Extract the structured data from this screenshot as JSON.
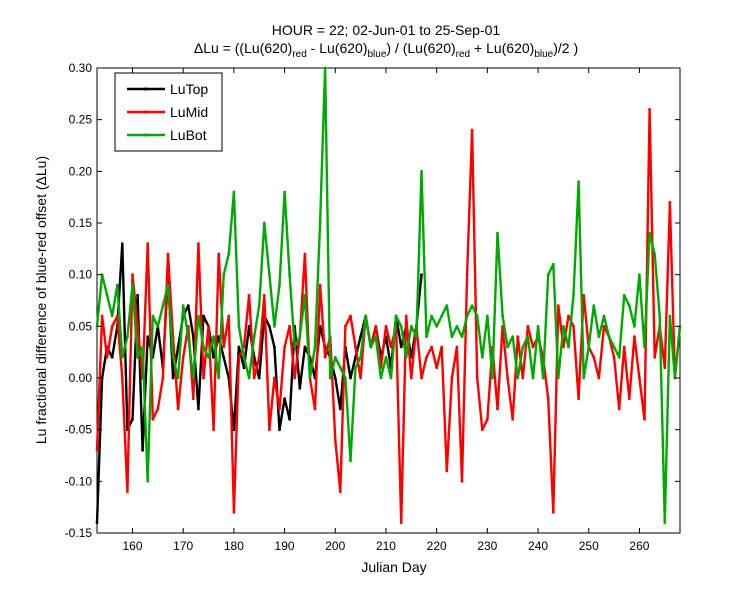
{
  "chart_data": {
    "type": "line",
    "title": {
      "line1": "HOUR = 22; 02-Jun-01 to 25-Sep-01",
      "line2": {
        "prefix": "ΔLu = ((Lu(620)",
        "s1": "red",
        "mid1": " - Lu(620)",
        "s2": "blue",
        "mid2": ") / (Lu(620)",
        "s3": "red",
        "mid3": " + Lu(620)",
        "s4": "blue",
        "suffix": ")/2  )"
      }
    },
    "xlabel": "Julian Day",
    "ylabel": "Lu fractional difference of blue-red offset (ΔLu)",
    "xlim": [
      153,
      268
    ],
    "ylim": [
      -0.15,
      0.3
    ],
    "xticks": [
      160,
      170,
      180,
      190,
      200,
      210,
      220,
      230,
      240,
      250,
      260
    ],
    "yticks": [
      -0.15,
      -0.1,
      -0.05,
      0.0,
      0.05,
      0.1,
      0.15,
      0.2,
      0.25,
      0.3
    ],
    "ytick_labels": [
      "-0.15",
      "-0.10",
      "-0.05",
      "0.00",
      "0.05",
      "0.10",
      "0.15",
      "0.20",
      "0.25",
      "0.30"
    ],
    "legend_position": "top-left",
    "series": [
      {
        "name": "LuTop",
        "color": "#000000",
        "x": [
          153,
          154,
          155,
          156,
          157,
          158,
          159,
          160,
          161,
          162,
          163,
          164,
          165,
          166,
          167,
          168,
          169,
          170,
          171,
          172,
          173,
          174,
          175,
          176,
          177,
          178,
          179,
          180,
          181,
          182,
          183,
          184,
          185,
          186,
          187,
          188,
          189,
          190,
          191,
          192,
          193,
          194,
          195,
          196,
          197,
          198,
          199,
          200,
          201,
          202,
          203,
          204,
          205,
          206,
          207,
          208,
          209,
          210,
          211,
          212,
          213,
          214,
          215,
          216,
          217
        ],
        "y": [
          -0.14,
          0.0,
          0.03,
          0.02,
          0.05,
          0.13,
          -0.05,
          -0.04,
          0.08,
          -0.07,
          0.04,
          0.02,
          0.05,
          0.01,
          0.1,
          0.0,
          0.03,
          0.06,
          0.07,
          0.04,
          -0.03,
          0.06,
          0.05,
          0.02,
          0.04,
          0.02,
          0.0,
          -0.05,
          0.03,
          0.01,
          0.05,
          0.02,
          0.0,
          0.06,
          0.05,
          0.03,
          -0.05,
          -0.02,
          -0.04,
          0.05,
          -0.01,
          0.03,
          0.02,
          0.0,
          0.05,
          0.03,
          0.02,
          0.0,
          -0.03,
          0.03,
          0.0,
          0.02,
          0.04,
          0.06,
          0.03,
          0.05,
          0.02,
          0.04,
          0.01,
          0.06,
          0.03,
          0.05,
          0.02,
          0.05,
          0.1
        ]
      },
      {
        "name": "LuMid",
        "color": "#ff0000",
        "x": [
          153,
          154,
          155,
          156,
          157,
          158,
          159,
          160,
          161,
          162,
          163,
          164,
          165,
          166,
          167,
          168,
          169,
          170,
          171,
          172,
          173,
          174,
          175,
          176,
          177,
          178,
          179,
          180,
          181,
          182,
          183,
          184,
          185,
          186,
          187,
          188,
          189,
          190,
          191,
          192,
          193,
          194,
          195,
          196,
          197,
          198,
          199,
          200,
          201,
          202,
          203,
          204,
          205,
          206,
          207,
          208,
          209,
          210,
          211,
          212,
          213,
          214,
          215,
          216,
          217,
          218,
          219,
          220,
          221,
          222,
          223,
          224,
          225,
          226,
          227,
          228,
          229,
          230,
          231,
          232,
          233,
          234,
          235,
          236,
          237,
          238,
          239,
          240,
          241,
          242,
          243,
          244,
          245,
          246,
          247,
          248,
          249,
          250,
          251,
          252,
          253,
          254,
          255,
          256,
          257,
          258,
          259,
          260,
          261,
          262,
          263,
          264,
          265,
          266,
          267,
          268
        ],
        "y": [
          -0.07,
          0.06,
          0.02,
          0.05,
          0.06,
          0.0,
          -0.11,
          0.1,
          0.05,
          0.0,
          0.13,
          -0.04,
          -0.03,
          0.0,
          0.12,
          0.04,
          -0.03,
          0.02,
          0.05,
          -0.02,
          0.13,
          0.0,
          0.05,
          -0.05,
          0.12,
          0.03,
          0.06,
          -0.13,
          0.02,
          0.03,
          0.08,
          0.0,
          0.02,
          0.08,
          -0.05,
          0.0,
          -0.03,
          0.03,
          0.05,
          0.0,
          0.04,
          0.12,
          0.0,
          -0.03,
          0.09,
          0.02,
          0.04,
          -0.06,
          -0.11,
          0.05,
          0.06,
          0.03,
          0.0,
          0.06,
          0.03,
          0.05,
          0.01,
          0.05,
          0.03,
          0.05,
          -0.14,
          0.06,
          0.0,
          0.05,
          0.0,
          0.02,
          0.03,
          0.01,
          0.03,
          -0.09,
          0.0,
          0.03,
          -0.1,
          0.1,
          0.24,
          0.0,
          -0.05,
          -0.04,
          0.03,
          -0.03,
          0.05,
          0.0,
          -0.04,
          0.04,
          0.0,
          0.05,
          0.03,
          0.04,
          0.02,
          -0.02,
          -0.13,
          0.07,
          0.03,
          0.06,
          0.05,
          -0.02,
          0.08,
          0.03,
          0.02,
          0.0,
          0.05,
          0.04,
          0.02,
          -0.03,
          0.03,
          -0.02,
          0.04,
          0.0,
          -0.04,
          0.26,
          0.02,
          0.05,
          0.01,
          0.17,
          0.0,
          0.05
        ]
      },
      {
        "name": "LuBot",
        "color": "#00aa00",
        "x": [
          153,
          154,
          155,
          156,
          157,
          158,
          159,
          160,
          161,
          162,
          163,
          164,
          165,
          166,
          167,
          168,
          169,
          170,
          171,
          172,
          173,
          174,
          175,
          176,
          177,
          178,
          179,
          180,
          181,
          182,
          183,
          184,
          185,
          186,
          187,
          188,
          189,
          190,
          191,
          192,
          193,
          194,
          195,
          196,
          197,
          198,
          199,
          200,
          201,
          202,
          203,
          204,
          205,
          206,
          207,
          208,
          209,
          210,
          211,
          212,
          213,
          214,
          215,
          216,
          217,
          218,
          219,
          220,
          221,
          222,
          223,
          224,
          225,
          226,
          227,
          228,
          229,
          230,
          231,
          232,
          233,
          234,
          235,
          236,
          237,
          238,
          239,
          240,
          241,
          242,
          243,
          244,
          245,
          246,
          247,
          248,
          249,
          250,
          251,
          252,
          253,
          254,
          255,
          256,
          257,
          258,
          259,
          260,
          261,
          262,
          263,
          264,
          265,
          266,
          267,
          268
        ],
        "y": [
          0.05,
          0.1,
          0.08,
          0.06,
          0.09,
          0.02,
          0.04,
          0.09,
          0.02,
          0.03,
          -0.1,
          0.06,
          0.05,
          0.07,
          0.09,
          0.02,
          0.0,
          0.07,
          0.04,
          0.0,
          0.06,
          0.03,
          0.02,
          0.04,
          0.0,
          0.1,
          0.12,
          0.18,
          0.05,
          0.02,
          0.0,
          0.04,
          0.07,
          0.15,
          0.1,
          0.05,
          0.09,
          0.18,
          0.1,
          0.03,
          0.04,
          0.08,
          0.0,
          0.03,
          0.15,
          0.3,
          0.0,
          0.02,
          0.01,
          0.0,
          -0.08,
          0.01,
          0.02,
          0.06,
          0.03,
          0.04,
          0.0,
          0.02,
          0.0,
          0.06,
          0.05,
          0.02,
          0.05,
          0.04,
          0.2,
          0.04,
          0.06,
          0.05,
          0.06,
          0.07,
          0.04,
          0.05,
          0.04,
          0.06,
          0.07,
          0.06,
          0.02,
          0.06,
          0.0,
          0.14,
          0.06,
          0.03,
          0.04,
          0.0,
          0.03,
          0.04,
          0.0,
          0.05,
          0.0,
          0.1,
          0.11,
          0.0,
          0.05,
          0.03,
          0.08,
          0.19,
          0.0,
          0.03,
          0.07,
          0.04,
          0.06,
          0.04,
          0.03,
          0.02,
          0.08,
          0.07,
          0.05,
          0.1,
          0.03,
          0.14,
          0.12,
          0.06,
          -0.14,
          0.06,
          0.0,
          0.05
        ]
      }
    ]
  }
}
